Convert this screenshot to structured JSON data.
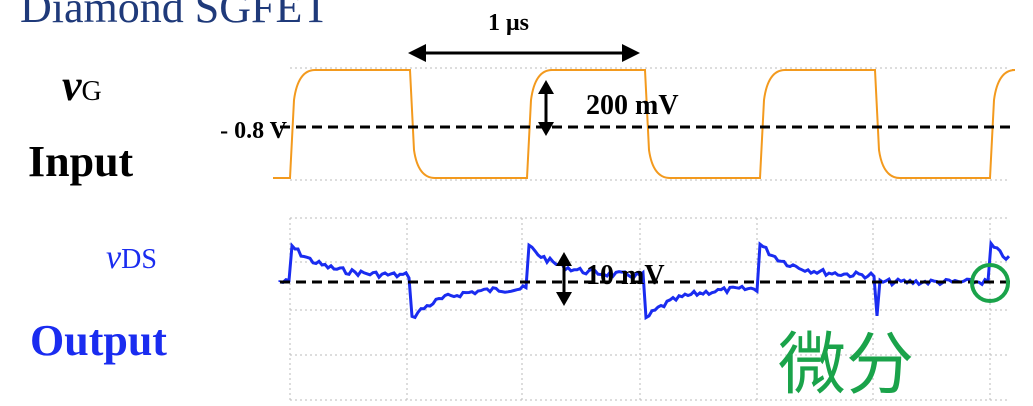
{
  "title": "Diamond SGFET",
  "period_label": "1 μs",
  "input": {
    "symbol": "v",
    "subscript": "G",
    "label": "Input",
    "level_label": "- 0.8 V",
    "amplitude_label": "200 mV"
  },
  "output": {
    "symbol": "v",
    "subscript": "DS",
    "label": "Output",
    "amplitude_label": "10 mV",
    "note": "微分"
  }
}
